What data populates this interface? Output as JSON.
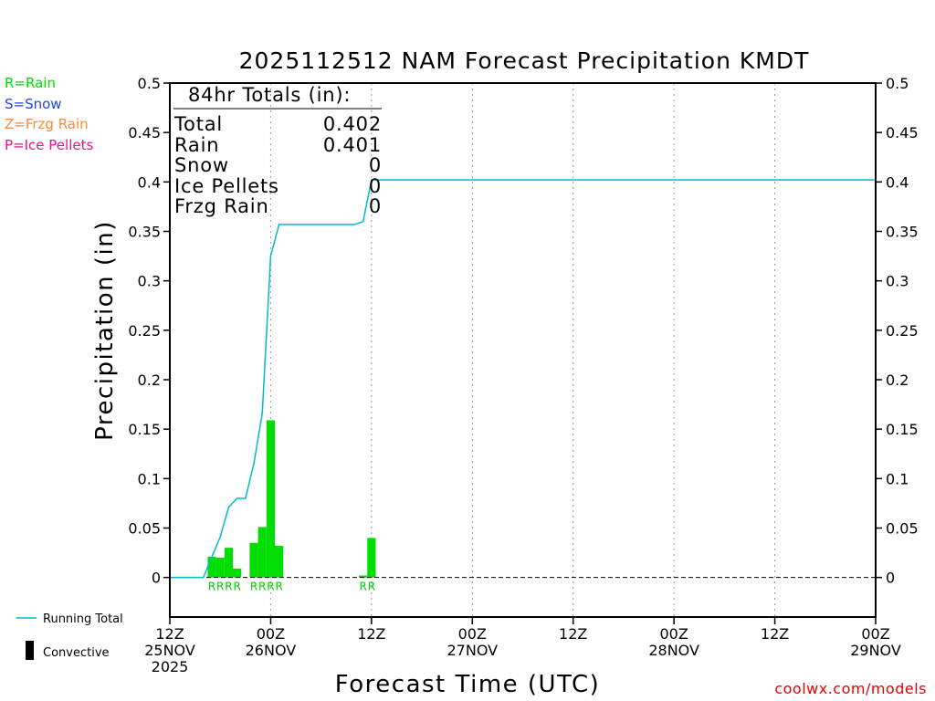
{
  "colors": {
    "rain": "#00dd00",
    "snow": "#2244ee",
    "frzg_rain": "#ff8833",
    "ice_pellets": "#ee1188",
    "running_total": "#00bbcc",
    "bars": "#00dd00",
    "credit": "#ee0000"
  },
  "precip_type_legend": [
    "R=Rain",
    "S=Snow",
    "Z=Frzg Rain",
    "P=Ice Pellets"
  ],
  "totals": {
    "header": "84hr Totals (in):",
    "rows": [
      {
        "label": "Total",
        "value": "0.402"
      },
      {
        "label": "Rain",
        "value": "0.401"
      },
      {
        "label": "Snow",
        "value": "0"
      },
      {
        "label": "Ice Pellets",
        "value": "0"
      },
      {
        "label": "Frzg Rain",
        "value": "0"
      }
    ]
  },
  "series_legend": {
    "running_total": "Running Total",
    "convective": "Convective"
  },
  "credit": "coolwx.com/models",
  "chart_data": {
    "type": "bar",
    "title": "2025112512 NAM Forecast Precipitation KMDT",
    "xlabel": "Forecast Time (UTC)",
    "ylabel": "Precipitation (in)",
    "xlim": [
      0,
      84
    ],
    "ylim": [
      -0.04,
      0.5
    ],
    "yticks": [
      0,
      0.05,
      0.1,
      0.15,
      0.2,
      0.25,
      0.3,
      0.35,
      0.4,
      0.45,
      0.5
    ],
    "ytick_labels": [
      "0",
      "0.05",
      "0.1",
      "0.15",
      "0.2",
      "0.25",
      "0.3",
      "0.35",
      "0.4",
      "0.45",
      "0.5"
    ],
    "xticks": [
      {
        "hour": 0,
        "lines": [
          "12Z",
          "25NOV",
          "2025"
        ]
      },
      {
        "hour": 12,
        "lines": [
          "00Z",
          "26NOV"
        ]
      },
      {
        "hour": 24,
        "lines": [
          "12Z"
        ]
      },
      {
        "hour": 36,
        "lines": [
          "00Z",
          "27NOV"
        ]
      },
      {
        "hour": 48,
        "lines": [
          "12Z"
        ]
      },
      {
        "hour": 60,
        "lines": [
          "00Z",
          "28NOV"
        ]
      },
      {
        "hour": 72,
        "lines": [
          "12Z"
        ]
      },
      {
        "hour": 84,
        "lines": [
          "00Z",
          "29NOV"
        ]
      }
    ],
    "grid": "vertical dotted",
    "bar_width_hours": 1,
    "bars": [
      {
        "hour": 5,
        "value": 0.021
      },
      {
        "hour": 6,
        "value": 0.02
      },
      {
        "hour": 7,
        "value": 0.03
      },
      {
        "hour": 8,
        "value": 0.009
      },
      {
        "hour": 10,
        "value": 0.035
      },
      {
        "hour": 11,
        "value": 0.051
      },
      {
        "hour": 12,
        "value": 0.159
      },
      {
        "hour": 13,
        "value": 0.032
      },
      {
        "hour": 23,
        "value": 0.002
      },
      {
        "hour": 24,
        "value": 0.04
      }
    ],
    "running_total": [
      [
        0,
        0
      ],
      [
        4,
        0
      ],
      [
        5,
        0.021
      ],
      [
        6,
        0.041
      ],
      [
        7,
        0.071
      ],
      [
        8,
        0.08
      ],
      [
        9,
        0.08
      ],
      [
        10,
        0.115
      ],
      [
        11,
        0.166
      ],
      [
        12,
        0.325
      ],
      [
        13,
        0.357
      ],
      [
        14,
        0.357
      ],
      [
        19,
        0.357
      ],
      [
        21,
        0.357
      ],
      [
        22,
        0.357
      ],
      [
        23,
        0.36
      ],
      [
        24,
        0.402
      ],
      [
        84,
        0.402
      ]
    ],
    "ptype_marks": [
      {
        "hour": 5,
        "text": "R"
      },
      {
        "hour": 6,
        "text": "R"
      },
      {
        "hour": 7,
        "text": "R"
      },
      {
        "hour": 8,
        "text": "R"
      },
      {
        "hour": 10,
        "text": "R"
      },
      {
        "hour": 11,
        "text": "R"
      },
      {
        "hour": 12,
        "text": "R"
      },
      {
        "hour": 13,
        "text": "R"
      },
      {
        "hour": 23,
        "text": "R"
      },
      {
        "hour": 24,
        "text": "R"
      }
    ]
  }
}
